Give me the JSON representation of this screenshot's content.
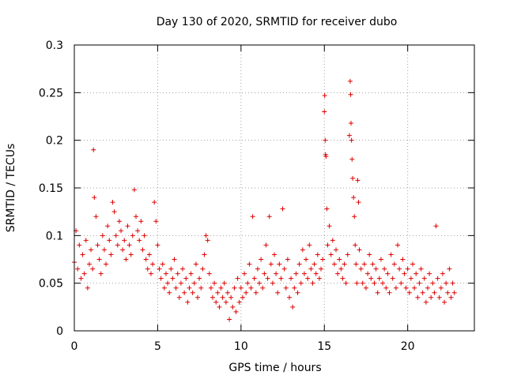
{
  "chart_data": {
    "type": "scatter",
    "title": "Day 130 of 2020, SRMTID for receiver dubo",
    "xlabel": "GPS time / hours",
    "ylabel": "SRMTID / TECUs",
    "xlim": [
      0,
      24
    ],
    "ylim": [
      0,
      0.3
    ],
    "x_ticks": [
      0,
      5,
      10,
      15,
      20
    ],
    "x_tick_labels": [
      "0",
      "5",
      "10",
      "15",
      "20"
    ],
    "y_ticks": [
      0,
      0.05,
      0.1,
      0.15,
      0.2,
      0.25,
      0.3
    ],
    "y_tick_labels": [
      "0",
      "0.05",
      "0.1",
      "0.15",
      "0.2",
      "0.25",
      "0.3"
    ],
    "grid": true,
    "marker": "+",
    "color": "#e00000",
    "series": [
      {
        "name": "SRMTID",
        "points": [
          [
            0.0,
            0.072
          ],
          [
            0.1,
            0.105
          ],
          [
            0.2,
            0.065
          ],
          [
            0.3,
            0.09
          ],
          [
            0.4,
            0.055
          ],
          [
            0.5,
            0.08
          ],
          [
            0.6,
            0.06
          ],
          [
            0.7,
            0.095
          ],
          [
            0.8,
            0.045
          ],
          [
            0.9,
            0.07
          ],
          [
            1.0,
            0.085
          ],
          [
            1.1,
            0.065
          ],
          [
            1.15,
            0.19
          ],
          [
            1.2,
            0.14
          ],
          [
            1.3,
            0.12
          ],
          [
            1.4,
            0.09
          ],
          [
            1.5,
            0.075
          ],
          [
            1.6,
            0.06
          ],
          [
            1.7,
            0.1
          ],
          [
            1.8,
            0.085
          ],
          [
            1.9,
            0.07
          ],
          [
            2.0,
            0.11
          ],
          [
            2.1,
            0.095
          ],
          [
            2.2,
            0.08
          ],
          [
            2.3,
            0.135
          ],
          [
            2.4,
            0.125
          ],
          [
            2.5,
            0.1
          ],
          [
            2.6,
            0.09
          ],
          [
            2.7,
            0.115
          ],
          [
            2.8,
            0.105
          ],
          [
            2.9,
            0.085
          ],
          [
            3.0,
            0.095
          ],
          [
            3.1,
            0.075
          ],
          [
            3.2,
            0.11
          ],
          [
            3.3,
            0.09
          ],
          [
            3.4,
            0.08
          ],
          [
            3.5,
            0.1
          ],
          [
            3.6,
            0.148
          ],
          [
            3.7,
            0.12
          ],
          [
            3.8,
            0.105
          ],
          [
            3.9,
            0.095
          ],
          [
            4.0,
            0.115
          ],
          [
            4.1,
            0.085
          ],
          [
            4.2,
            0.1
          ],
          [
            4.3,
            0.075
          ],
          [
            4.4,
            0.065
          ],
          [
            4.5,
            0.08
          ],
          [
            4.6,
            0.06
          ],
          [
            4.7,
            0.07
          ],
          [
            4.8,
            0.135
          ],
          [
            4.9,
            0.115
          ],
          [
            5.0,
            0.09
          ],
          [
            5.1,
            0.065
          ],
          [
            5.2,
            0.055
          ],
          [
            5.3,
            0.07
          ],
          [
            5.4,
            0.045
          ],
          [
            5.5,
            0.06
          ],
          [
            5.6,
            0.05
          ],
          [
            5.7,
            0.04
          ],
          [
            5.8,
            0.065
          ],
          [
            5.9,
            0.055
          ],
          [
            6.0,
            0.075
          ],
          [
            6.1,
            0.045
          ],
          [
            6.2,
            0.06
          ],
          [
            6.3,
            0.035
          ],
          [
            6.4,
            0.05
          ],
          [
            6.5,
            0.065
          ],
          [
            6.6,
            0.04
          ],
          [
            6.7,
            0.055
          ],
          [
            6.8,
            0.03
          ],
          [
            6.9,
            0.045
          ],
          [
            7.0,
            0.06
          ],
          [
            7.1,
            0.04
          ],
          [
            7.2,
            0.05
          ],
          [
            7.3,
            0.07
          ],
          [
            7.4,
            0.035
          ],
          [
            7.5,
            0.055
          ],
          [
            7.6,
            0.045
          ],
          [
            7.7,
            0.065
          ],
          [
            7.8,
            0.08
          ],
          [
            7.9,
            0.1
          ],
          [
            8.0,
            0.095
          ],
          [
            8.1,
            0.06
          ],
          [
            8.2,
            0.045
          ],
          [
            8.3,
            0.035
          ],
          [
            8.4,
            0.05
          ],
          [
            8.5,
            0.03
          ],
          [
            8.6,
            0.04
          ],
          [
            8.7,
            0.025
          ],
          [
            8.8,
            0.045
          ],
          [
            8.9,
            0.035
          ],
          [
            9.0,
            0.05
          ],
          [
            9.1,
            0.03
          ],
          [
            9.2,
            0.04
          ],
          [
            9.3,
            0.012
          ],
          [
            9.4,
            0.035
          ],
          [
            9.5,
            0.025
          ],
          [
            9.6,
            0.045
          ],
          [
            9.7,
            0.02
          ],
          [
            9.8,
            0.055
          ],
          [
            9.9,
            0.03
          ],
          [
            10.0,
            0.045
          ],
          [
            10.1,
            0.035
          ],
          [
            10.2,
            0.06
          ],
          [
            10.3,
            0.04
          ],
          [
            10.4,
            0.05
          ],
          [
            10.5,
            0.07
          ],
          [
            10.6,
            0.045
          ],
          [
            10.7,
            0.12
          ],
          [
            10.8,
            0.055
          ],
          [
            10.9,
            0.04
          ],
          [
            11.0,
            0.065
          ],
          [
            11.1,
            0.05
          ],
          [
            11.2,
            0.075
          ],
          [
            11.3,
            0.045
          ],
          [
            11.4,
            0.06
          ],
          [
            11.5,
            0.09
          ],
          [
            11.6,
            0.055
          ],
          [
            11.7,
            0.12
          ],
          [
            11.8,
            0.07
          ],
          [
            11.9,
            0.05
          ],
          [
            12.0,
            0.08
          ],
          [
            12.1,
            0.06
          ],
          [
            12.2,
            0.04
          ],
          [
            12.3,
            0.07
          ],
          [
            12.4,
            0.055
          ],
          [
            12.5,
            0.128
          ],
          [
            12.6,
            0.065
          ],
          [
            12.7,
            0.045
          ],
          [
            12.8,
            0.075
          ],
          [
            12.9,
            0.035
          ],
          [
            13.0,
            0.055
          ],
          [
            13.1,
            0.025
          ],
          [
            13.2,
            0.045
          ],
          [
            13.3,
            0.06
          ],
          [
            13.4,
            0.04
          ],
          [
            13.5,
            0.07
          ],
          [
            13.6,
            0.05
          ],
          [
            13.7,
            0.085
          ],
          [
            13.8,
            0.06
          ],
          [
            13.9,
            0.075
          ],
          [
            14.0,
            0.055
          ],
          [
            14.1,
            0.09
          ],
          [
            14.2,
            0.065
          ],
          [
            14.3,
            0.05
          ],
          [
            14.4,
            0.07
          ],
          [
            14.5,
            0.06
          ],
          [
            14.6,
            0.08
          ],
          [
            14.7,
            0.055
          ],
          [
            14.8,
            0.065
          ],
          [
            14.9,
            0.075
          ],
          [
            15.0,
            0.23
          ],
          [
            15.02,
            0.247
          ],
          [
            15.05,
            0.2
          ],
          [
            15.07,
            0.185
          ],
          [
            15.1,
            0.183
          ],
          [
            15.15,
            0.128
          ],
          [
            15.2,
            0.09
          ],
          [
            15.3,
            0.11
          ],
          [
            15.4,
            0.08
          ],
          [
            15.5,
            0.095
          ],
          [
            15.6,
            0.07
          ],
          [
            15.7,
            0.085
          ],
          [
            15.8,
            0.06
          ],
          [
            15.9,
            0.075
          ],
          [
            16.0,
            0.065
          ],
          [
            16.1,
            0.055
          ],
          [
            16.2,
            0.07
          ],
          [
            16.3,
            0.05
          ],
          [
            16.4,
            0.08
          ],
          [
            16.5,
            0.205
          ],
          [
            16.55,
            0.262
          ],
          [
            16.58,
            0.248
          ],
          [
            16.6,
            0.218
          ],
          [
            16.63,
            0.2
          ],
          [
            16.66,
            0.18
          ],
          [
            16.7,
            0.16
          ],
          [
            16.75,
            0.14
          ],
          [
            16.8,
            0.12
          ],
          [
            16.85,
            0.09
          ],
          [
            16.9,
            0.07
          ],
          [
            16.95,
            0.05
          ],
          [
            17.0,
            0.158
          ],
          [
            17.05,
            0.135
          ],
          [
            17.1,
            0.085
          ],
          [
            17.2,
            0.065
          ],
          [
            17.3,
            0.05
          ],
          [
            17.4,
            0.07
          ],
          [
            17.5,
            0.045
          ],
          [
            17.6,
            0.06
          ],
          [
            17.7,
            0.08
          ],
          [
            17.8,
            0.055
          ],
          [
            17.9,
            0.07
          ],
          [
            18.0,
            0.05
          ],
          [
            18.1,
            0.065
          ],
          [
            18.2,
            0.04
          ],
          [
            18.3,
            0.055
          ],
          [
            18.4,
            0.075
          ],
          [
            18.5,
            0.05
          ],
          [
            18.6,
            0.065
          ],
          [
            18.7,
            0.045
          ],
          [
            18.8,
            0.06
          ],
          [
            18.9,
            0.04
          ],
          [
            19.0,
            0.08
          ],
          [
            19.1,
            0.055
          ],
          [
            19.2,
            0.07
          ],
          [
            19.3,
            0.045
          ],
          [
            19.4,
            0.09
          ],
          [
            19.5,
            0.065
          ],
          [
            19.6,
            0.05
          ],
          [
            19.7,
            0.075
          ],
          [
            19.8,
            0.06
          ],
          [
            19.9,
            0.045
          ],
          [
            20.0,
            0.065
          ],
          [
            20.1,
            0.04
          ],
          [
            20.2,
            0.055
          ],
          [
            20.3,
            0.07
          ],
          [
            20.4,
            0.045
          ],
          [
            20.5,
            0.06
          ],
          [
            20.6,
            0.035
          ],
          [
            20.7,
            0.05
          ],
          [
            20.8,
            0.065
          ],
          [
            20.9,
            0.04
          ],
          [
            21.0,
            0.055
          ],
          [
            21.1,
            0.03
          ],
          [
            21.2,
            0.045
          ],
          [
            21.3,
            0.06
          ],
          [
            21.4,
            0.035
          ],
          [
            21.5,
            0.05
          ],
          [
            21.6,
            0.04
          ],
          [
            21.7,
            0.11
          ],
          [
            21.8,
            0.055
          ],
          [
            21.9,
            0.035
          ],
          [
            22.0,
            0.045
          ],
          [
            22.1,
            0.06
          ],
          [
            22.2,
            0.03
          ],
          [
            22.3,
            0.05
          ],
          [
            22.4,
            0.04
          ],
          [
            22.5,
            0.065
          ],
          [
            22.6,
            0.035
          ],
          [
            22.7,
            0.05
          ],
          [
            22.8,
            0.04
          ]
        ]
      }
    ]
  }
}
